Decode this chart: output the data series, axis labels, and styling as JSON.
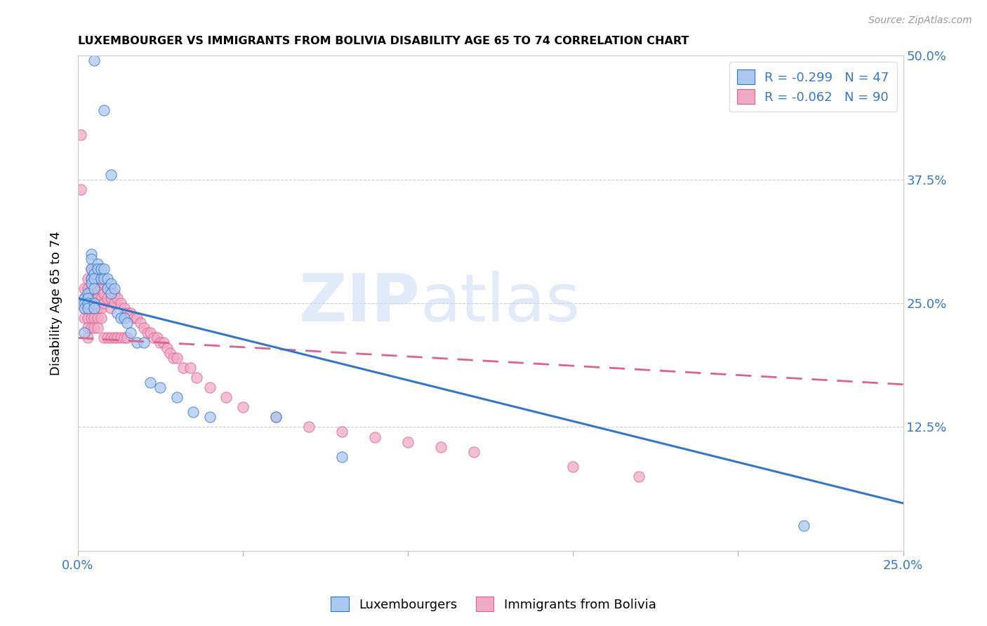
{
  "title": "LUXEMBOURGER VS IMMIGRANTS FROM BOLIVIA DISABILITY AGE 65 TO 74 CORRELATION CHART",
  "source": "Source: ZipAtlas.com",
  "ylabel": "Disability Age 65 to 74",
  "xlim": [
    0.0,
    0.25
  ],
  "ylim": [
    0.0,
    0.5
  ],
  "xtick_vals": [
    0.0,
    0.05,
    0.1,
    0.15,
    0.2,
    0.25
  ],
  "xtick_labels": [
    "0.0%",
    "",
    "",
    "",
    "",
    "25.0%"
  ],
  "ytick_vals": [
    0.0,
    0.125,
    0.25,
    0.375,
    0.5
  ],
  "ytick_labels_right": [
    "",
    "12.5%",
    "25.0%",
    "37.5%",
    "50.0%"
  ],
  "blue_color": "#aac8f0",
  "pink_color": "#f0aac4",
  "blue_line_color": "#3377cc",
  "pink_line_color": "#e06090",
  "legend_R1": "-0.299",
  "legend_N1": "47",
  "legend_R2": "-0.062",
  "legend_N2": "90",
  "label1": "Luxembourgers",
  "label2": "Immigrants from Bolivia",
  "watermark_zip": "ZIP",
  "watermark_atlas": "atlas",
  "blue_line_x": [
    0.0,
    0.25
  ],
  "blue_line_y": [
    0.255,
    0.048
  ],
  "pink_line_x": [
    0.0,
    0.25
  ],
  "pink_line_y": [
    0.215,
    0.168
  ],
  "blue_scatter_x": [
    0.005,
    0.008,
    0.01,
    0.002,
    0.002,
    0.002,
    0.003,
    0.003,
    0.003,
    0.003,
    0.004,
    0.004,
    0.004,
    0.004,
    0.004,
    0.005,
    0.005,
    0.005,
    0.005,
    0.005,
    0.006,
    0.006,
    0.007,
    0.007,
    0.008,
    0.008,
    0.009,
    0.009,
    0.01,
    0.01,
    0.011,
    0.012,
    0.013,
    0.014,
    0.015,
    0.016,
    0.018,
    0.02,
    0.022,
    0.025,
    0.03,
    0.035,
    0.04,
    0.06,
    0.08,
    0.22,
    0.002
  ],
  "blue_scatter_y": [
    0.495,
    0.445,
    0.38,
    0.255,
    0.25,
    0.245,
    0.26,
    0.255,
    0.25,
    0.245,
    0.3,
    0.295,
    0.285,
    0.275,
    0.27,
    0.28,
    0.275,
    0.265,
    0.25,
    0.245,
    0.29,
    0.285,
    0.285,
    0.275,
    0.285,
    0.275,
    0.275,
    0.265,
    0.27,
    0.26,
    0.265,
    0.24,
    0.235,
    0.235,
    0.23,
    0.22,
    0.21,
    0.21,
    0.17,
    0.165,
    0.155,
    0.14,
    0.135,
    0.135,
    0.095,
    0.025,
    0.22
  ],
  "pink_scatter_x": [
    0.001,
    0.001,
    0.002,
    0.002,
    0.002,
    0.002,
    0.003,
    0.003,
    0.003,
    0.003,
    0.003,
    0.003,
    0.003,
    0.004,
    0.004,
    0.004,
    0.004,
    0.004,
    0.004,
    0.004,
    0.005,
    0.005,
    0.005,
    0.005,
    0.005,
    0.005,
    0.005,
    0.006,
    0.006,
    0.006,
    0.006,
    0.006,
    0.006,
    0.007,
    0.007,
    0.007,
    0.007,
    0.007,
    0.008,
    0.008,
    0.008,
    0.008,
    0.009,
    0.009,
    0.009,
    0.01,
    0.01,
    0.01,
    0.01,
    0.011,
    0.011,
    0.011,
    0.012,
    0.012,
    0.013,
    0.013,
    0.014,
    0.014,
    0.015,
    0.015,
    0.016,
    0.017,
    0.018,
    0.019,
    0.02,
    0.021,
    0.022,
    0.023,
    0.024,
    0.025,
    0.026,
    0.027,
    0.028,
    0.029,
    0.03,
    0.032,
    0.034,
    0.036,
    0.04,
    0.045,
    0.05,
    0.06,
    0.07,
    0.08,
    0.09,
    0.1,
    0.11,
    0.12,
    0.15,
    0.17
  ],
  "pink_scatter_y": [
    0.42,
    0.365,
    0.265,
    0.255,
    0.245,
    0.235,
    0.275,
    0.265,
    0.255,
    0.245,
    0.235,
    0.225,
    0.215,
    0.285,
    0.275,
    0.265,
    0.255,
    0.245,
    0.235,
    0.225,
    0.285,
    0.275,
    0.265,
    0.255,
    0.245,
    0.235,
    0.225,
    0.275,
    0.265,
    0.255,
    0.245,
    0.235,
    0.225,
    0.275,
    0.265,
    0.255,
    0.245,
    0.235,
    0.27,
    0.26,
    0.25,
    0.215,
    0.265,
    0.255,
    0.215,
    0.265,
    0.255,
    0.245,
    0.215,
    0.26,
    0.25,
    0.215,
    0.255,
    0.215,
    0.25,
    0.215,
    0.245,
    0.215,
    0.24,
    0.215,
    0.24,
    0.235,
    0.235,
    0.23,
    0.225,
    0.22,
    0.22,
    0.215,
    0.215,
    0.21,
    0.21,
    0.205,
    0.2,
    0.195,
    0.195,
    0.185,
    0.185,
    0.175,
    0.165,
    0.155,
    0.145,
    0.135,
    0.125,
    0.12,
    0.115,
    0.11,
    0.105,
    0.1,
    0.085,
    0.075
  ]
}
